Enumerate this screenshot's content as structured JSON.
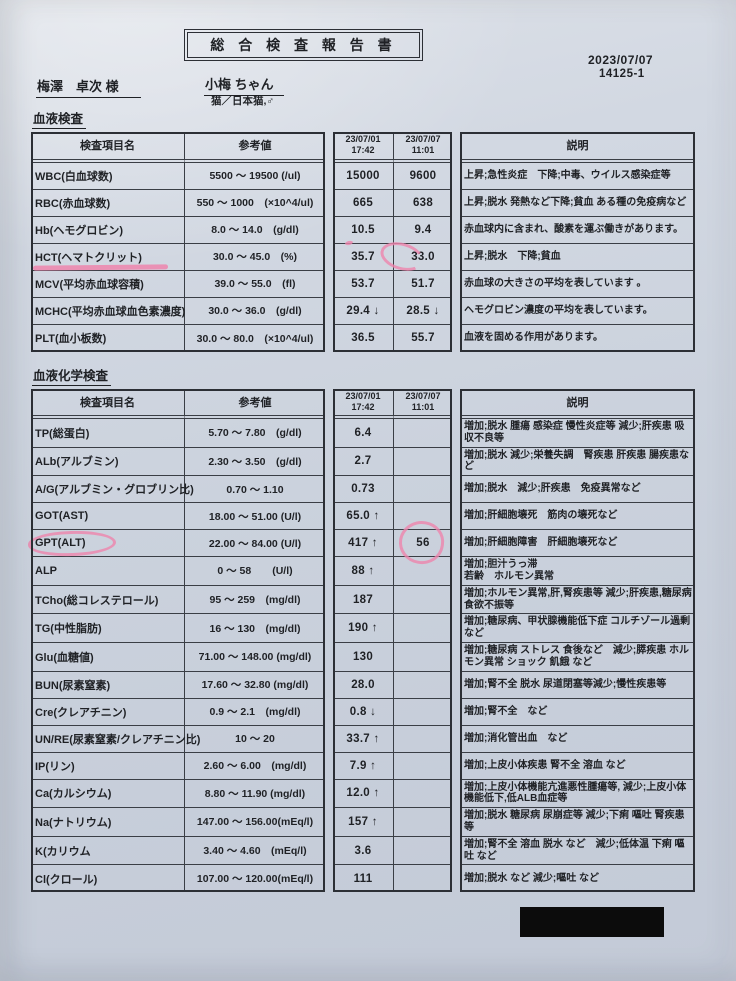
{
  "report": {
    "title": "総 合 検 査 報 告 書",
    "date": "2023/07/07",
    "report_no": "14125-1",
    "owner": "梅澤　卓次 様",
    "pet_name": "小梅 ちゃん",
    "pet_species": "猫／日本猫,♂"
  },
  "columns": {
    "item": "検査項目名",
    "reference": "参考値",
    "date1": "23/07/01",
    "time1": "17:42",
    "date2": "23/07/07",
    "time2": "11:01",
    "description": "説明"
  },
  "sections": [
    {
      "name": "血液検査",
      "rows": [
        {
          "item": "WBC(白血球数)",
          "ref": "5500 ～ 19500 (/ul)",
          "v1": "15000",
          "v2": "9600",
          "desc": "上昇;急性炎症　下降;中毒、ウイルス感染症等"
        },
        {
          "item": "RBC(赤血球数)",
          "ref": "550 ～ 1000　(×10^4/ul)",
          "v1": "665",
          "v2": "638",
          "desc": "上昇;脱水 発熱など下降;貧血 ある種の免疫病など"
        },
        {
          "item": "Hb(ヘモグロビン)",
          "ref": "8.0 ～ 14.0　(g/dl)",
          "v1": "10.5",
          "v2": "9.4",
          "desc": "赤血球内に含まれ、酸素を運ぶ働きがあります。",
          "mark_v1": "dot"
        },
        {
          "item": "HCT(ヘマトクリット)",
          "ref": "30.0 ～ 45.0　(%)",
          "v1": "35.7",
          "v2": "33.0",
          "desc": "上昇;脱水　下降;貧血",
          "mark_item": "underline",
          "mark_v2": "open-circle"
        },
        {
          "item": "MCV(平均赤血球容積)",
          "ref": "39.0 ～ 55.0　(fl)",
          "v1": "53.7",
          "v2": "51.7",
          "desc": "赤血球の大きさの平均を表しています 。"
        },
        {
          "item": "MCHC(平均赤血球血色素濃度)",
          "ref": "30.0 ～ 36.0　(g/dl)",
          "v1": "29.4 ↓",
          "v2": "28.5 ↓",
          "desc": "ヘモグロビン濃度の平均を表しています。"
        },
        {
          "item": "PLT(血小板数)",
          "ref": "30.0 ～ 80.0　(×10^4/ul)",
          "v1": "36.5",
          "v2": "55.7",
          "desc": "血液を固める作用があります。"
        }
      ]
    },
    {
      "name": "血液化学検査",
      "rows": [
        {
          "item": "TP(総蛋白)",
          "ref": "5.70 ～ 7.80　(g/dl)",
          "v1": "6.4",
          "v2": "",
          "desc": "増加;脱水 腫瘍 感染症 慢性炎症等 減少;肝疾患 吸収不良等"
        },
        {
          "item": "ALb(アルブミン)",
          "ref": "2.30 ～ 3.50　(g/dl)",
          "v1": "2.7",
          "v2": "",
          "desc": "増加;脱水 減少;栄養失調　腎疾患 肝疾患 腸疾患など"
        },
        {
          "item": "A/G(アルブミン・グロブリン比)",
          "ref": "0.70 ～ 1.10",
          "v1": "0.73",
          "v2": "",
          "desc": "増加;脱水　減少;肝疾患　免疫異常など"
        },
        {
          "item": "GOT(AST)",
          "ref": "18.00 ～ 51.00 (U/l)",
          "v1": "65.0 ↑",
          "v2": "",
          "desc": "増加;肝細胞壊死　筋肉の壊死など"
        },
        {
          "item": "GPT(ALT)",
          "ref": "22.00 ～ 84.00 (U/l)",
          "v1": "417 ↑",
          "v2": "56",
          "desc": "増加;肝細胞障害　肝細胞壊死など",
          "mark_item": "oval",
          "mark_v2": "circle"
        },
        {
          "item": "ALP",
          "ref": "0 ～ 58　　(U/l)",
          "v1": "88 ↑",
          "v2": "",
          "desc": "増加;胆汁うっ滞\n若齢　ホルモン異常"
        },
        {
          "item": "TCho(総コレステロール)",
          "ref": "95 ～ 259　(mg/dl)",
          "v1": "187",
          "v2": "",
          "desc": "増加;ホルモン異常,肝,腎疾患等 減少;肝疾患,糖尿病食欲不振等"
        },
        {
          "item": "TG(中性脂肪)",
          "ref": "16 ～ 130　(mg/dl)",
          "v1": "190 ↑",
          "v2": "",
          "desc": "増加;糖尿病、甲状腺機能低下症 コルチゾール過剰など"
        },
        {
          "item": "Glu(血糖値)",
          "ref": "71.00 ～ 148.00 (mg/dl)",
          "v1": "130",
          "v2": "",
          "desc": "増加;糖尿病 ストレス 食後など　減少;膵疾患 ホルモン異常 ショック 飢餓 など"
        },
        {
          "item": "BUN(尿素窒素)",
          "ref": "17.60 ～ 32.80 (mg/dl)",
          "v1": "28.0",
          "v2": "",
          "desc": "増加;腎不全 脱水 尿道閉塞等減少;慢性疾患等"
        },
        {
          "item": "Cre(クレアチニン)",
          "ref": "0.9 ～ 2.1　(mg/dl)",
          "v1": "0.8 ↓",
          "v2": "",
          "desc": "増加;腎不全　など"
        },
        {
          "item": "UN/RE(尿素窒素/クレアチニン比)",
          "ref": "10 ～ 20",
          "v1": "33.7 ↑",
          "v2": "",
          "desc": "増加;消化管出血　など"
        },
        {
          "item": "IP(リン)",
          "ref": "2.60 ～ 6.00　(mg/dl)",
          "v1": "7.9 ↑",
          "v2": "",
          "desc": "増加;上皮小体疾患 腎不全 溶血 など"
        },
        {
          "item": "Ca(カルシウム)",
          "ref": "8.80 ～ 11.90 (mg/dl)",
          "v1": "12.0 ↑",
          "v2": "",
          "desc": "増加;上皮小体機能亢進悪性腫瘍等, 減少;上皮小体機能低下,低ALB血症等"
        },
        {
          "item": "Na(ナトリウム)",
          "ref": "147.00 ～ 156.00(mEq/l)",
          "v1": "157 ↑",
          "v2": "",
          "desc": "増加;脱水 糖尿病 尿崩症等 減少;下痢 嘔吐 腎疾患等"
        },
        {
          "item": "K(カリウム",
          "ref": "3.40 ～ 4.60　(mEq/l)",
          "v1": "3.6",
          "v2": "",
          "desc": "増加;腎不全 溶血 脱水 など　減少;低体温 下痢 嘔吐 など"
        },
        {
          "item": "Cl(クロール)",
          "ref": "107.00 ～ 120.00(mEq/l)",
          "v1": "111",
          "v2": "",
          "desc": "増加;脱水 など 減少;嘔吐 など"
        }
      ]
    }
  ],
  "annotations": {
    "pink_marks": [
      {
        "type": "underline",
        "target": "HCT(ヘマトクリット)"
      },
      {
        "type": "open-circle",
        "target": "33.0"
      },
      {
        "type": "dot",
        "target": "10.5"
      },
      {
        "type": "oval",
        "target": "GPT(ALT)"
      },
      {
        "type": "circle",
        "target": "56"
      }
    ],
    "redaction_box": "black rectangle lower right"
  },
  "colors": {
    "paper": "#ccd3de",
    "ink": "#1f2125",
    "pink": "#ee85ad",
    "redaction": "#0c0c0c"
  }
}
